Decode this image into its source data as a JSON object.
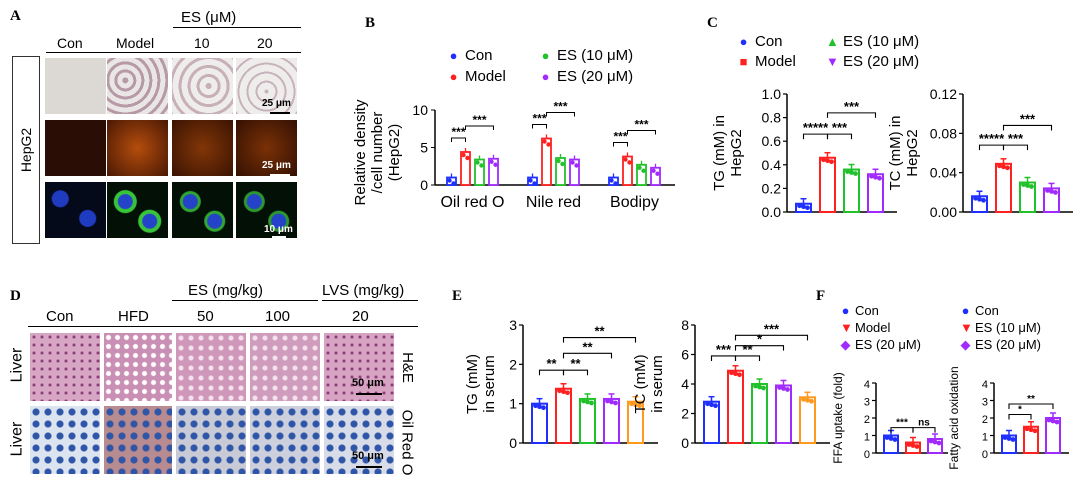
{
  "panels": {
    "A": {
      "letter": "A",
      "group_header": "ES (μM)",
      "columns": [
        "Con",
        "Model",
        "10",
        "20"
      ],
      "side_label": "HepG2",
      "scale_labels": [
        "25 μm",
        "25 μm",
        "10 μm"
      ]
    },
    "B": {
      "letter": "B",
      "legend": [
        "Con",
        "Model",
        "ES (10 μM)",
        "ES (20 μM)"
      ]
    },
    "C": {
      "letter": "C",
      "legend": [
        "Con",
        "Model",
        "ES (10 μM)",
        "ES (20 μM)"
      ]
    },
    "D": {
      "letter": "D",
      "columns": [
        "Con",
        "HFD",
        "50",
        "100",
        "20"
      ],
      "group_headers": [
        "ES (mg/kg)",
        "LVS (mg/kg)"
      ],
      "row_labels": [
        "Liver",
        "Liver"
      ],
      "stain_labels": [
        "H&E",
        "Oil Red O"
      ],
      "scale_labels": [
        "50 μm",
        "50 μm"
      ]
    },
    "E": {
      "letter": "E"
    },
    "F": {
      "letter": "F",
      "legend_left": [
        "Con",
        "Model",
        "ES (20 μM)"
      ],
      "legend_right": [
        "Con",
        "ES (10 μM)",
        "ES (20 μM)"
      ]
    }
  },
  "colors": {
    "con": "#1f2fff",
    "model": "#ff2020",
    "es10": "#21c12b",
    "es20": "#a12bff",
    "lvs": "#ff9a1f"
  },
  "chart_data": [
    {
      "id": "B",
      "type": "bar",
      "ylabel": "Relative density /cell number (HepG2)",
      "categories": [
        "Oil red O",
        "Nile red",
        "Bodipy"
      ],
      "yticks": [
        "0",
        "5",
        "10"
      ],
      "ylim": [
        0,
        10
      ],
      "series": [
        {
          "name": "Con",
          "values": [
            1.0,
            1.0,
            1.0
          ]
        },
        {
          "name": "Model",
          "values": [
            4.4,
            6.2,
            3.8
          ]
        },
        {
          "name": "ES (10 μM)",
          "values": [
            3.4,
            3.6,
            2.7
          ]
        },
        {
          "name": "ES (20 μM)",
          "values": [
            3.5,
            3.4,
            2.3
          ]
        }
      ],
      "significance": [
        "****",
        "**",
        "***",
        "******",
        "***",
        "******",
        "***"
      ]
    },
    {
      "id": "C1",
      "type": "bar",
      "ylabel": "TG (mM) in HepG2",
      "categories": [
        "Con",
        "Model",
        "ES (10 μM)",
        "ES (20 μM)"
      ],
      "yticks": [
        "0.0",
        "0.2",
        "0.4",
        "0.6",
        "0.8",
        "1.0"
      ],
      "ylim": [
        0,
        1.0
      ],
      "values": [
        0.07,
        0.46,
        0.36,
        0.32
      ],
      "significance": [
        "*****",
        "***",
        "***"
      ]
    },
    {
      "id": "C2",
      "type": "bar",
      "ylabel": "TC (mM) in HepG2",
      "categories": [
        "Con",
        "Model",
        "ES (10 μM)",
        "ES (20 μM)"
      ],
      "yticks": [
        "0.00",
        "0.04",
        "0.08",
        "0.12"
      ],
      "ylim": [
        0,
        0.12
      ],
      "values": [
        0.016,
        0.049,
        0.03,
        0.024
      ],
      "significance": [
        "*****",
        "***",
        "***"
      ]
    },
    {
      "id": "E1",
      "type": "bar",
      "ylabel": "TG (mM) in serum",
      "categories": [
        "Con",
        "HFD",
        "ES 50",
        "ES 100",
        "LVS 20"
      ],
      "yticks": [
        "0",
        "1",
        "2",
        "3"
      ],
      "ylim": [
        0,
        3
      ],
      "values": [
        1.0,
        1.38,
        1.12,
        1.12,
        1.05
      ],
      "significance": [
        "**",
        "**",
        "**",
        "**"
      ]
    },
    {
      "id": "E2",
      "type": "bar",
      "ylabel": "TC (mM) in serum",
      "categories": [
        "Con",
        "HFD",
        "ES 50",
        "ES 100",
        "LVS 20"
      ],
      "yticks": [
        "0",
        "2",
        "4",
        "6",
        "8"
      ],
      "ylim": [
        0,
        8
      ],
      "values": [
        2.8,
        4.9,
        4.0,
        3.9,
        3.1
      ],
      "significance": [
        "***",
        "**",
        "*",
        "***"
      ]
    },
    {
      "id": "F1",
      "type": "bar",
      "ylabel": "FFA uptake (fold)",
      "categories": [
        "Con",
        "Model",
        "ES (20 μM)"
      ],
      "yticks": [
        "0",
        "1",
        "2",
        "3",
        "4"
      ],
      "ylim": [
        0,
        4
      ],
      "values": [
        1.0,
        0.6,
        0.8
      ],
      "significance": [
        "***",
        "ns"
      ]
    },
    {
      "id": "F2",
      "type": "bar",
      "ylabel": "Fatty acid oxidation",
      "categories": [
        "Con",
        "ES (10 μM)",
        "ES (20 μM)"
      ],
      "yticks": [
        "0",
        "1",
        "2",
        "3",
        "4"
      ],
      "ylim": [
        0,
        4
      ],
      "values": [
        1.0,
        1.5,
        2.0
      ],
      "significance": [
        "*",
        "**"
      ]
    }
  ]
}
